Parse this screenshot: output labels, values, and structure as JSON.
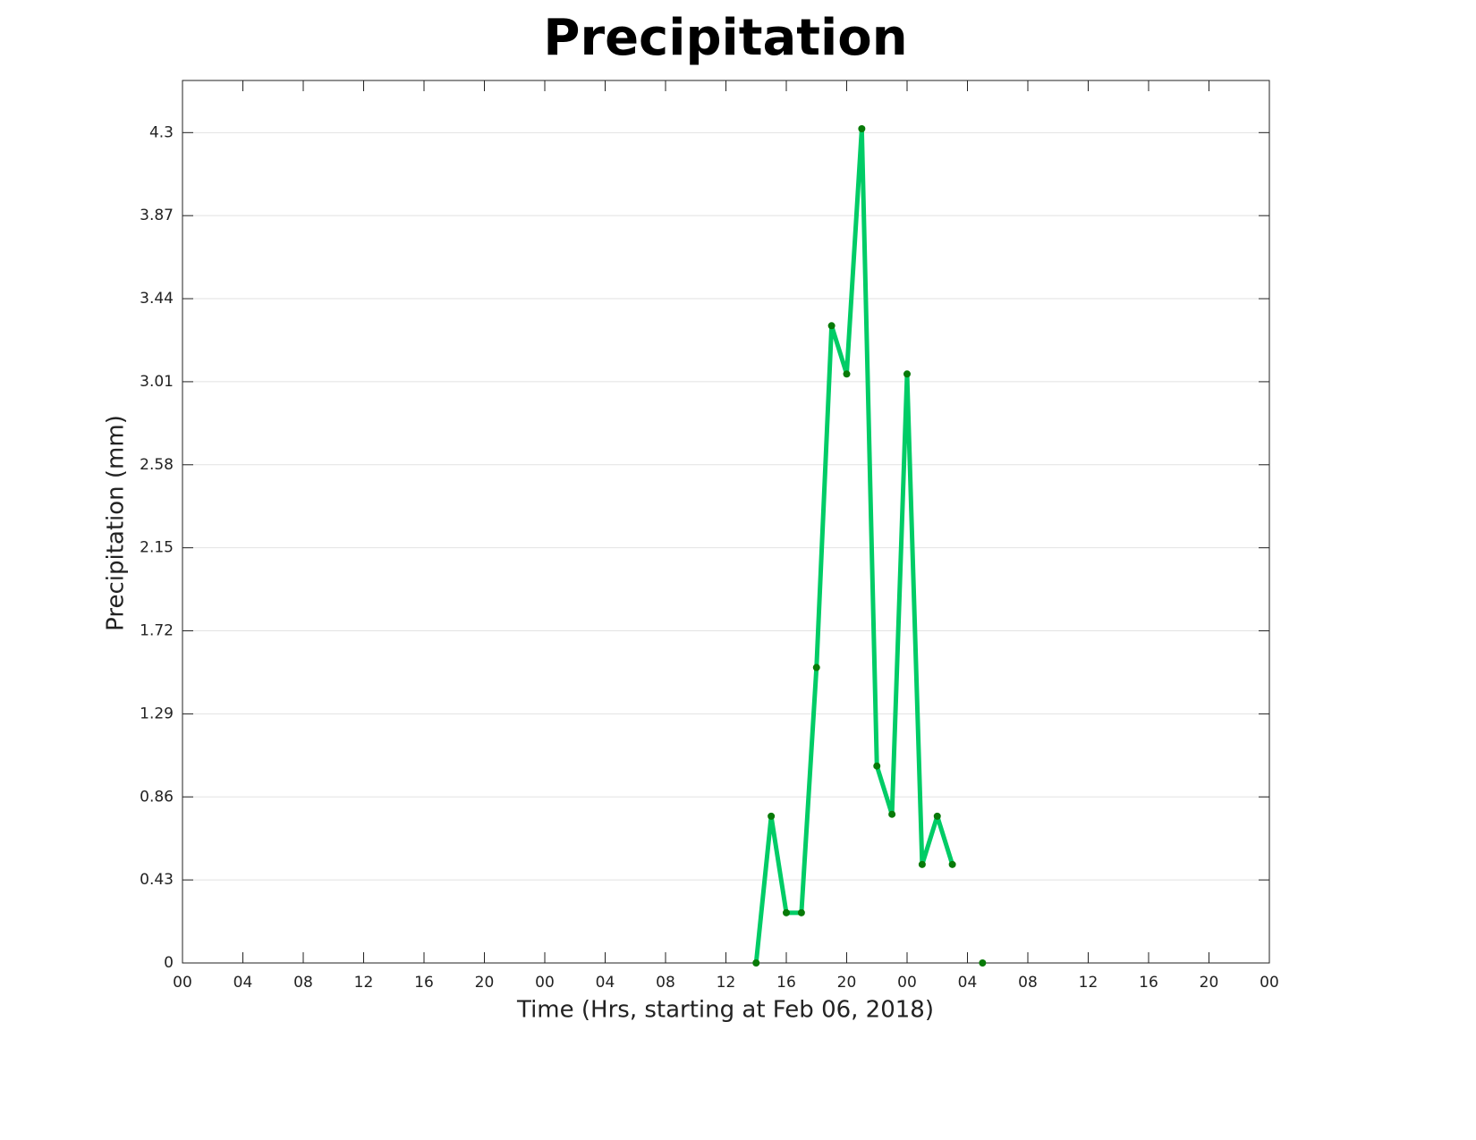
{
  "chart_data": {
    "type": "line",
    "title": "Precipitation",
    "xlabel": "Time (Hrs, starting at Feb 06, 2018)",
    "ylabel": "Precipitation (mm)",
    "x": [
      38,
      39,
      40,
      41,
      42,
      43,
      44,
      45,
      46,
      47,
      48,
      49,
      50,
      51,
      52,
      53
    ],
    "series": [
      {
        "color": "#00cc66",
        "marker_color": "#087a08",
        "values": [
          0,
          0.76,
          0.26,
          0.26,
          1.53,
          3.3,
          3.05,
          4.32,
          1.02,
          0.77,
          3.05,
          0.51,
          0.76,
          0.51,
          null,
          0
        ]
      }
    ],
    "xlim": [
      0,
      72
    ],
    "xticks": [
      {
        "value": 0,
        "label": "00"
      },
      {
        "value": 4,
        "label": "04"
      },
      {
        "value": 8,
        "label": "08"
      },
      12,
      16,
      20,
      {
        "value": 24,
        "label": "00"
      },
      {
        "value": 28,
        "label": "04"
      },
      {
        "value": 32,
        "label": "08"
      },
      {
        "value": 36,
        "label": "12"
      },
      {
        "value": 40,
        "label": "16"
      },
      {
        "value": 44,
        "label": "20"
      },
      {
        "value": 48,
        "label": "00"
      },
      {
        "value": 52,
        "label": "04"
      },
      {
        "value": 56,
        "label": "08"
      },
      {
        "value": 60,
        "label": "12"
      },
      {
        "value": 64,
        "label": "16"
      },
      {
        "value": 68,
        "label": "20"
      },
      {
        "value": 72,
        "label": "00"
      }
    ],
    "ylim": [
      0,
      4.57
    ],
    "yticks": [
      0,
      0.43,
      0.86,
      1.29,
      1.72,
      2.15,
      2.58,
      3.01,
      3.44,
      3.87,
      4.3
    ],
    "grid": true
  }
}
